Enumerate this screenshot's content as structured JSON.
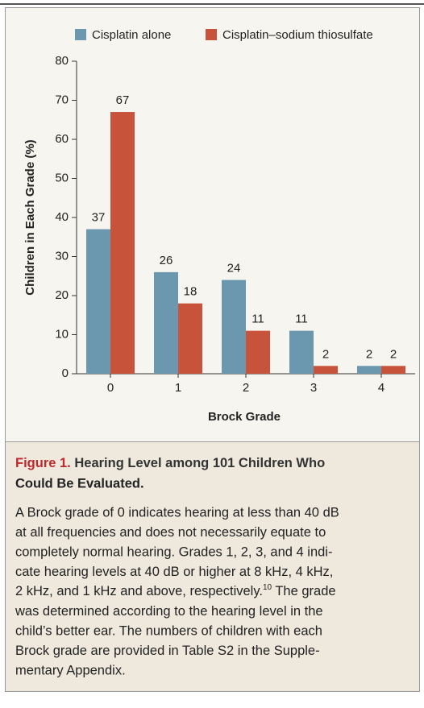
{
  "chart_data": {
    "type": "bar",
    "categories": [
      "0",
      "1",
      "2",
      "3",
      "4"
    ],
    "series": [
      {
        "name": "Cisplatin alone",
        "color": "#6b98ae",
        "values": [
          37,
          26,
          24,
          11,
          2
        ]
      },
      {
        "name": "Cisplatin–sodium thiosulfate",
        "color": "#c8533b",
        "values": [
          67,
          18,
          11,
          2,
          2
        ]
      }
    ],
    "ylim": [
      0,
      80
    ],
    "yticks": [
      0,
      10,
      20,
      30,
      40,
      50,
      60,
      70,
      80
    ],
    "ylabel": "Children in Each Grade (%)",
    "xlabel": "Brock Grade"
  },
  "caption": {
    "figure_label": "Figure 1.",
    "title_lines": [
      "Hearing Level among 101 Children Who",
      "Could Be Evaluated."
    ],
    "body_lines": [
      "A Brock grade of 0 indicates hearing at less than 40 dB",
      "at all frequencies and does not necessarily equate to",
      "completely normal hearing. Grades 1, 2, 3, and 4 indi-",
      "cate hearing levels at 40 dB or higher at 8 kHz, 4 kHz,",
      {
        "text": "2 kHz, and 1 kHz and above, respectively.",
        "sup": "10",
        "after": " The grade"
      },
      "was determined according to the hearing level in the",
      "child’s better ear. The numbers of children with each",
      "Brock grade are provided in Table S2 in the Supple-",
      "mentary Appendix."
    ]
  }
}
